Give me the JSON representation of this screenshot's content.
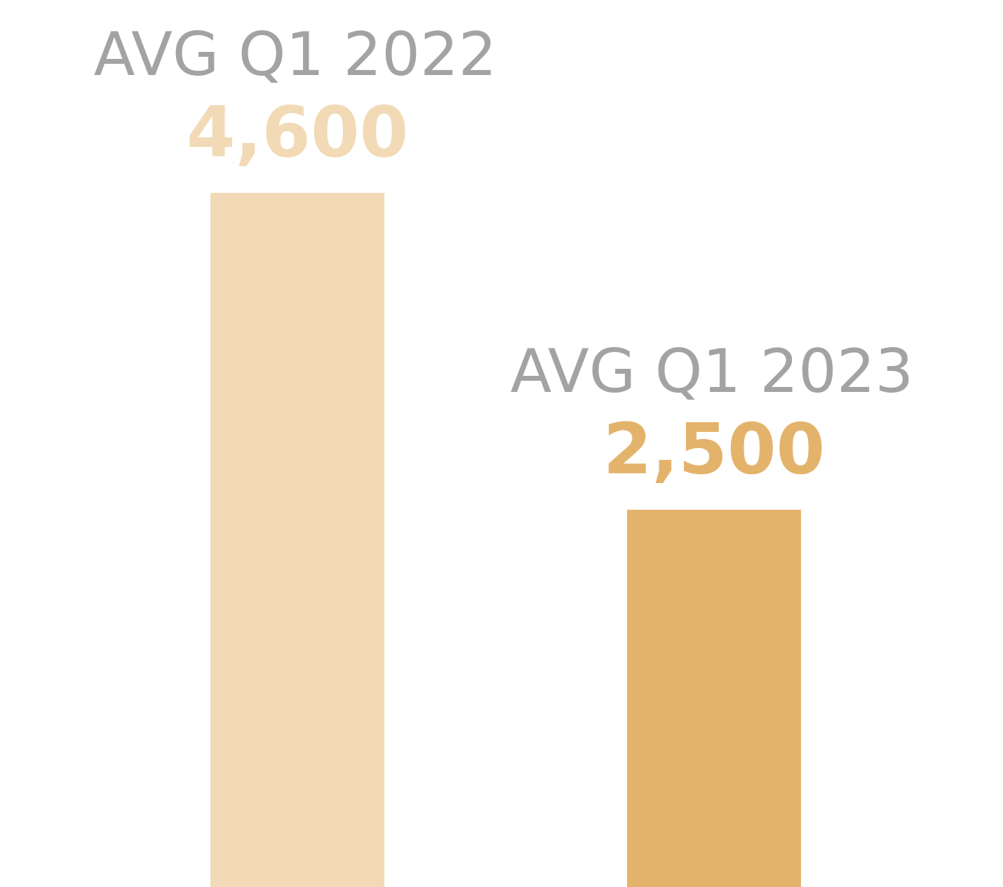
{
  "chart_data": {
    "type": "bar",
    "categories": [
      "AVG Q1 2022",
      "AVG Q1 2023"
    ],
    "values": [
      4600,
      2500
    ],
    "value_labels": [
      "4,600",
      "2,500"
    ],
    "colors": [
      "#f1dab5",
      "#e4b36b"
    ],
    "ylim": [
      0,
      4600
    ]
  }
}
